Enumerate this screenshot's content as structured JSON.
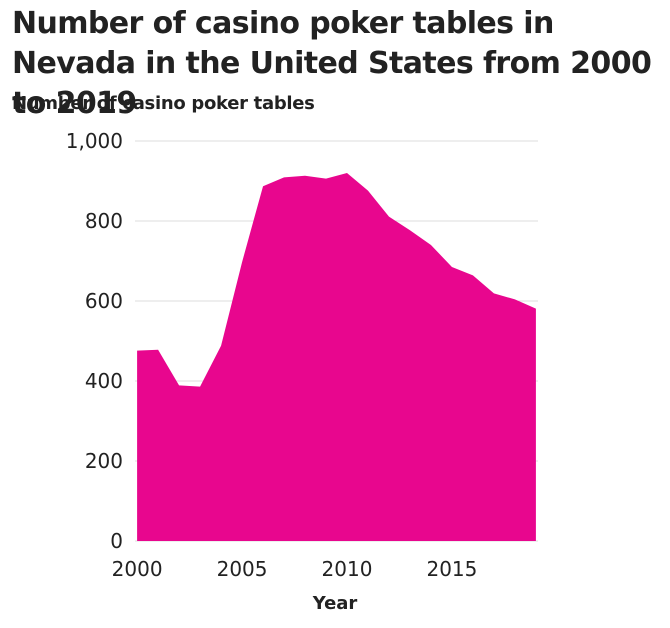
{
  "chart_data": {
    "type": "area",
    "title": "Number of casino poker tables in Nevada in the United States from 2000 to 2019",
    "ylabel": "Number of casino poker tables",
    "xlabel": "Year",
    "x": [
      2000,
      2001,
      2002,
      2003,
      2004,
      2005,
      2006,
      2007,
      2008,
      2009,
      2010,
      2011,
      2012,
      2013,
      2014,
      2015,
      2016,
      2017,
      2018,
      2019
    ],
    "values": [
      476,
      478,
      389,
      386,
      488,
      697,
      887,
      909,
      913,
      906,
      920,
      876,
      811,
      777,
      740,
      685,
      664,
      619,
      604,
      581
    ],
    "xlim": [
      1999.9,
      2019.1
    ],
    "ylim": [
      0,
      1000
    ],
    "yticks": [
      0,
      200,
      400,
      600,
      800,
      1000
    ],
    "ytick_labels": [
      "0",
      "200",
      "400",
      "600",
      "800",
      "1,000"
    ],
    "xticks": [
      2000,
      2005,
      2010,
      2015
    ],
    "xtick_labels": [
      "2000",
      "2005",
      "2010",
      "2015"
    ],
    "grid": "horizontal",
    "fill_color": "#e8068e",
    "grid_color": "#dddddd"
  }
}
